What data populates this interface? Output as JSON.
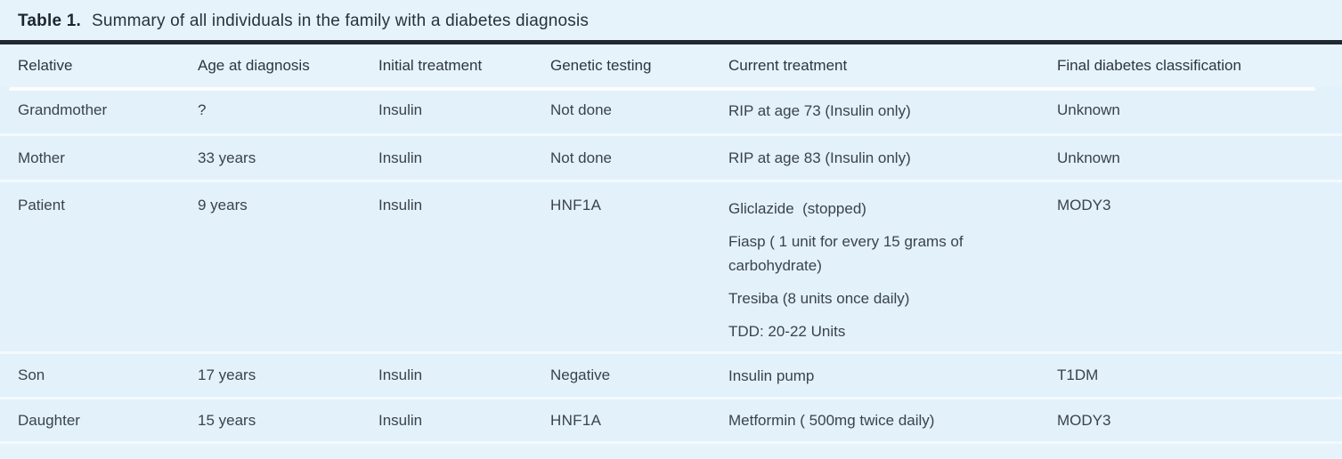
{
  "title": {
    "label": "Table 1.",
    "caption": "Summary of all individuals in the family with a diabetes diagnosis"
  },
  "colors": {
    "page_background": "#e7f3fb",
    "title_rule": "#212832",
    "row_background": "#e3f1fa",
    "row_separator": "#f2fafe",
    "header_underline": "#fbfdfe",
    "text": "#39434e"
  },
  "table": {
    "columns": [
      "Relative",
      "Age at diagnosis",
      "Initial treatment",
      "Genetic testing",
      "Current treatment",
      "Final diabetes classification"
    ],
    "rows": [
      {
        "relative": "Grandmother",
        "age": "?",
        "initial": "Insulin",
        "genetic": "Not done",
        "current": [
          "RIP at age 73 (Insulin only)"
        ],
        "final": "Unknown"
      },
      {
        "relative": "Mother",
        "age": "33 years",
        "initial": "Insulin",
        "genetic": "Not done",
        "current": [
          "RIP at age 83 (Insulin only)"
        ],
        "final": "Unknown"
      },
      {
        "relative": "Patient",
        "age": "9 years",
        "initial": "Insulin",
        "genetic": "HNF1A",
        "current": [
          "Gliclazide  (stopped)",
          "Fiasp ( 1 unit for every 15 grams of carbohydrate)",
          "Tresiba (8 units once daily)",
          "TDD: 20-22 Units"
        ],
        "final": "MODY3"
      },
      {
        "relative": "Son",
        "age": "17 years",
        "initial": "Insulin",
        "genetic": "Negative",
        "current": [
          "Insulin pump"
        ],
        "final": "T1DM"
      },
      {
        "relative": "Daughter",
        "age": "15 years",
        "initial": "Insulin",
        "genetic": "HNF1A",
        "current": [
          "Metformin ( 500mg twice daily)"
        ],
        "final": "MODY3"
      }
    ]
  }
}
